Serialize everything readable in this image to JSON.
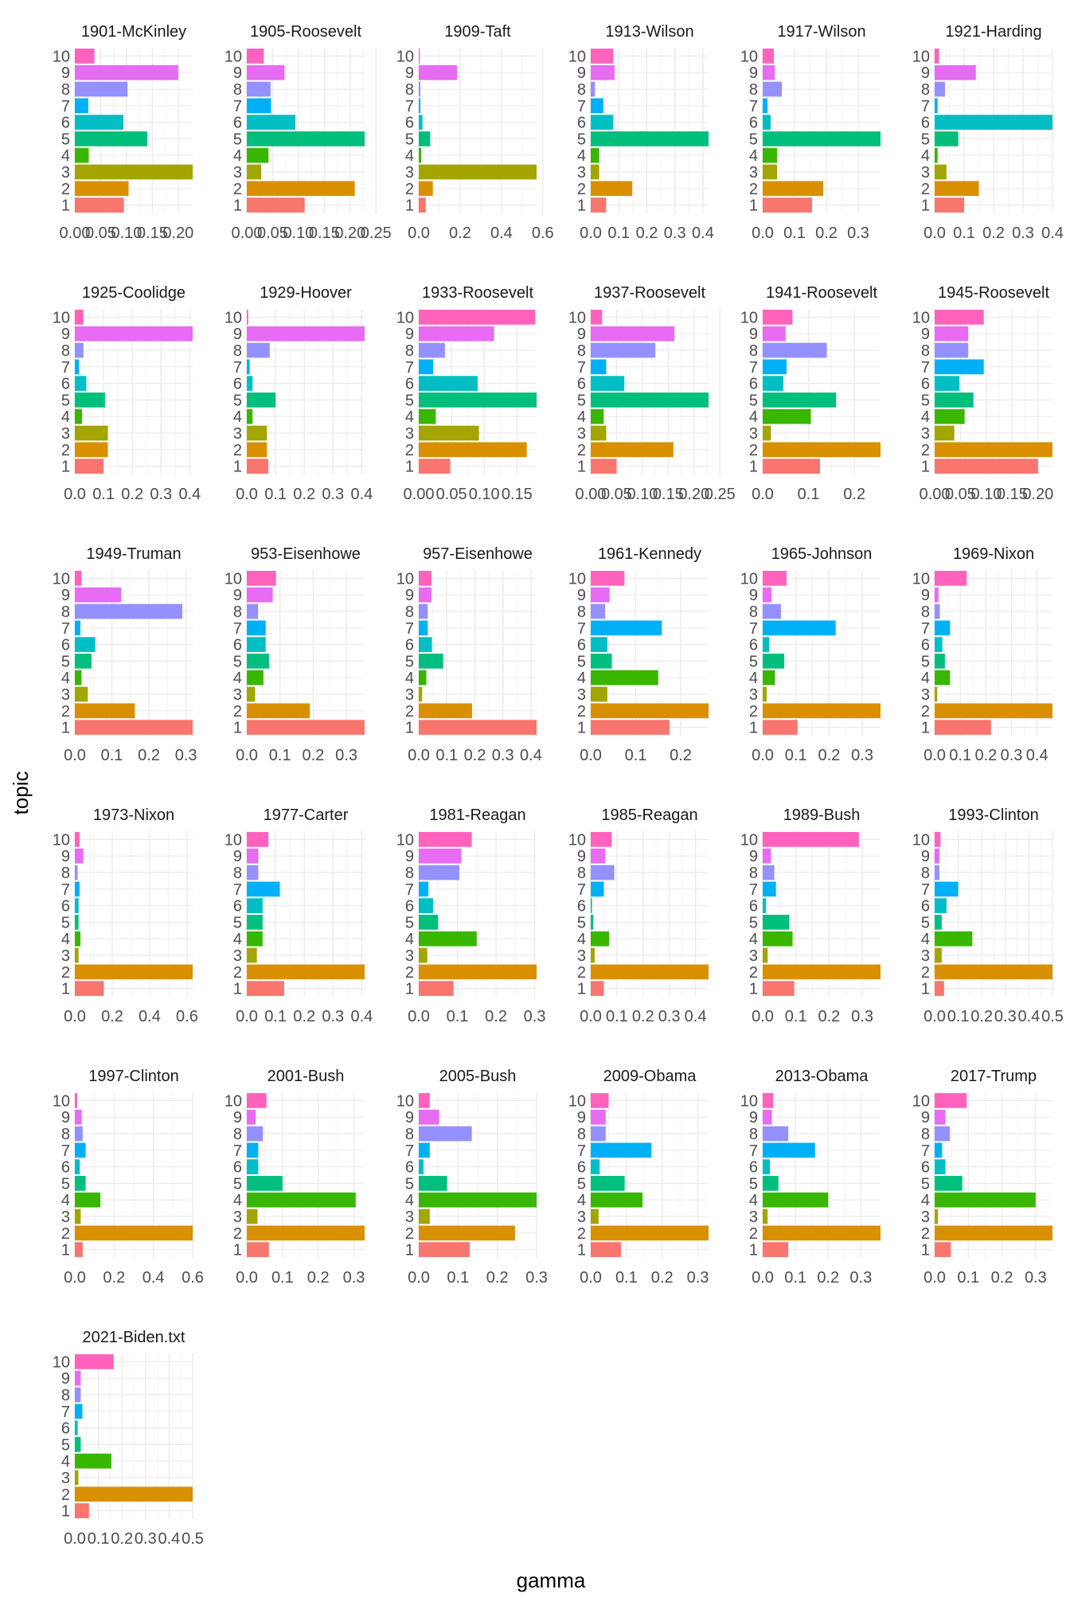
{
  "chart_data": {
    "type": "bar",
    "orientation": "horizontal",
    "facet_layout": {
      "ncol": 6,
      "nrow": 7
    },
    "xlabel": "gamma",
    "ylabel": "topic",
    "topics": [
      "1",
      "2",
      "3",
      "4",
      "5",
      "6",
      "7",
      "8",
      "9",
      "10"
    ],
    "topic_colors": [
      "#F8766D",
      "#D89000",
      "#A3A500",
      "#39B600",
      "#00BF7D",
      "#00BFC4",
      "#00B0F6",
      "#9590FF",
      "#E76BF3",
      "#FF62BC"
    ],
    "grid": true,
    "legend": "none",
    "facets": [
      {
        "title": "1901-McKinley",
        "xlim": [
          0,
          0.228
        ],
        "xticks": [
          0,
          0.05,
          0.1,
          0.15,
          0.2
        ],
        "xtick_labels": [
          "0.00",
          "0.05",
          "0.10",
          "0.15",
          "0.20"
        ],
        "values": [
          0.095,
          0.104,
          0.228,
          0.027,
          0.14,
          0.094,
          0.026,
          0.102,
          0.2,
          0.038
        ]
      },
      {
        "title": "1905-Roosevelt",
        "xlim": [
          0,
          0.228
        ],
        "xticks": [
          0,
          0.05,
          0.1,
          0.15,
          0.2,
          0.25
        ],
        "xtick_labels": [
          "0.00",
          "0.05",
          "0.10",
          "0.15",
          "0.20",
          "0.25"
        ],
        "values": [
          0.112,
          0.209,
          0.028,
          0.042,
          0.228,
          0.094,
          0.047,
          0.046,
          0.073,
          0.033
        ]
      },
      {
        "title": "1909-Taft",
        "xlim": [
          0,
          0.57
        ],
        "xticks": [
          0,
          0.2,
          0.4,
          0.6
        ],
        "xtick_labels": [
          "0.0",
          "0.2",
          "0.4",
          "0.6"
        ],
        "values": [
          0.034,
          0.068,
          0.57,
          0.012,
          0.055,
          0.018,
          0.008,
          0.008,
          0.185,
          0.005
        ]
      },
      {
        "title": "1913-Wilson",
        "xlim": [
          0,
          0.42
        ],
        "xticks": [
          0,
          0.1,
          0.2,
          0.3,
          0.4
        ],
        "xtick_labels": [
          "0.0",
          "0.1",
          "0.2",
          "0.3",
          "0.4"
        ],
        "values": [
          0.055,
          0.148,
          0.03,
          0.03,
          0.42,
          0.08,
          0.045,
          0.015,
          0.085,
          0.08
        ]
      },
      {
        "title": "1917-Wilson",
        "xlim": [
          0,
          0.37
        ],
        "xticks": [
          0,
          0.1,
          0.2,
          0.3
        ],
        "xtick_labels": [
          "0.0",
          "0.1",
          "0.2",
          "0.3"
        ],
        "values": [
          0.155,
          0.19,
          0.045,
          0.045,
          0.37,
          0.025,
          0.015,
          0.06,
          0.038,
          0.035
        ]
      },
      {
        "title": "1921-Harding",
        "xlim": [
          0,
          0.4
        ],
        "xticks": [
          0,
          0.1,
          0.2,
          0.3,
          0.4
        ],
        "xtick_labels": [
          "0.0",
          "0.1",
          "0.2",
          "0.3",
          "0.4"
        ],
        "values": [
          0.1,
          0.15,
          0.04,
          0.01,
          0.08,
          0.4,
          0.01,
          0.035,
          0.14,
          0.015
        ]
      },
      {
        "title": "1925-Coolidge",
        "xlim": [
          0,
          0.41
        ],
        "xticks": [
          0,
          0.1,
          0.2,
          0.3,
          0.4
        ],
        "xtick_labels": [
          "0.0",
          "0.1",
          "0.2",
          "0.3",
          "0.4"
        ],
        "values": [
          0.1,
          0.115,
          0.115,
          0.025,
          0.105,
          0.04,
          0.015,
          0.03,
          0.41,
          0.03
        ]
      },
      {
        "title": "1929-Hoover",
        "xlim": [
          0,
          0.41
        ],
        "xticks": [
          0,
          0.1,
          0.2,
          0.3,
          0.4
        ],
        "xtick_labels": [
          "0.0",
          "0.1",
          "0.2",
          "0.3",
          "0.4"
        ],
        "values": [
          0.075,
          0.07,
          0.07,
          0.02,
          0.1,
          0.02,
          0.01,
          0.08,
          0.41,
          0.005
        ]
      },
      {
        "title": "1933-Roosevelt",
        "xlim": [
          0,
          0.18
        ],
        "xticks": [
          0,
          0.05,
          0.1,
          0.15
        ],
        "xtick_labels": [
          "0.00",
          "0.05",
          "0.10",
          "0.15"
        ],
        "values": [
          0.048,
          0.165,
          0.092,
          0.026,
          0.18,
          0.09,
          0.022,
          0.04,
          0.115,
          0.178
        ]
      },
      {
        "title": "1937-Roosevelt",
        "xlim": [
          0,
          0.228
        ],
        "xticks": [
          0,
          0.05,
          0.1,
          0.15,
          0.2,
          0.25
        ],
        "xtick_labels": [
          "0.00",
          "0.05",
          "0.10",
          "0.15",
          "0.20",
          "0.25"
        ],
        "values": [
          0.05,
          0.16,
          0.03,
          0.025,
          0.228,
          0.065,
          0.03,
          0.125,
          0.162,
          0.022
        ]
      },
      {
        "title": "1941-Roosevelt",
        "xlim": [
          0,
          0.257
        ],
        "xticks": [
          0,
          0.1,
          0.2
        ],
        "xtick_labels": [
          "0.0",
          "0.1",
          "0.2"
        ],
        "values": [
          0.125,
          0.257,
          0.018,
          0.105,
          0.16,
          0.045,
          0.052,
          0.14,
          0.05,
          0.065
        ]
      },
      {
        "title": "1945-Roosevelt",
        "xlim": [
          0,
          0.228
        ],
        "xticks": [
          0,
          0.05,
          0.1,
          0.15,
          0.2
        ],
        "xtick_labels": [
          "0.00",
          "0.05",
          "0.10",
          "0.15",
          "0.20"
        ],
        "values": [
          0.2,
          0.228,
          0.038,
          0.058,
          0.075,
          0.048,
          0.095,
          0.065,
          0.065,
          0.095
        ]
      },
      {
        "title": "1949-Truman",
        "xlim": [
          0,
          0.318
        ],
        "xticks": [
          0,
          0.1,
          0.2,
          0.3
        ],
        "xtick_labels": [
          "0.0",
          "0.1",
          "0.2",
          "0.3"
        ],
        "values": [
          0.318,
          0.162,
          0.035,
          0.018,
          0.045,
          0.055,
          0.015,
          0.29,
          0.125,
          0.018
        ]
      },
      {
        "title": "953-Eisenhowe",
        "xlim": [
          0,
          0.355
        ],
        "xticks": [
          0,
          0.1,
          0.2,
          0.3
        ],
        "xtick_labels": [
          "0.0",
          "0.1",
          "0.2",
          "0.3"
        ],
        "values": [
          0.355,
          0.19,
          0.025,
          0.05,
          0.067,
          0.057,
          0.057,
          0.034,
          0.078,
          0.088
        ]
      },
      {
        "title": "957-Eisenhowe",
        "xlim": [
          0,
          0.42
        ],
        "xticks": [
          0,
          0.1,
          0.2,
          0.3,
          0.4
        ],
        "xtick_labels": [
          "0.0",
          "0.1",
          "0.2",
          "0.3",
          "0.4"
        ],
        "values": [
          0.42,
          0.19,
          0.012,
          0.027,
          0.087,
          0.047,
          0.032,
          0.032,
          0.045,
          0.045
        ]
      },
      {
        "title": "1961-Kennedy",
        "xlim": [
          0,
          0.262
        ],
        "xticks": [
          0,
          0.1,
          0.2
        ],
        "xtick_labels": [
          "0.0",
          "0.1",
          "0.2"
        ],
        "values": [
          0.175,
          0.262,
          0.037,
          0.15,
          0.047,
          0.037,
          0.158,
          0.032,
          0.042,
          0.075
        ]
      },
      {
        "title": "1965-Johnson",
        "xlim": [
          0,
          0.355
        ],
        "xticks": [
          0,
          0.1,
          0.2,
          0.3
        ],
        "xtick_labels": [
          "0.0",
          "0.1",
          "0.2",
          "0.3"
        ],
        "values": [
          0.105,
          0.355,
          0.012,
          0.037,
          0.065,
          0.02,
          0.22,
          0.055,
          0.027,
          0.072
        ]
      },
      {
        "title": "1969-Nixon",
        "xlim": [
          0,
          0.46
        ],
        "xticks": [
          0,
          0.1,
          0.2,
          0.3,
          0.4
        ],
        "xtick_labels": [
          "0.0",
          "0.1",
          "0.2",
          "0.3",
          "0.4"
        ],
        "values": [
          0.22,
          0.46,
          0.01,
          0.06,
          0.04,
          0.03,
          0.06,
          0.02,
          0.015,
          0.125
        ]
      },
      {
        "title": "1973-Nixon",
        "xlim": [
          0,
          0.63
        ],
        "xticks": [
          0,
          0.2,
          0.4,
          0.6
        ],
        "xtick_labels": [
          "0.0",
          "0.2",
          "0.4",
          "0.6"
        ],
        "values": [
          0.155,
          0.63,
          0.02,
          0.03,
          0.02,
          0.02,
          0.025,
          0.015,
          0.045,
          0.025
        ]
      },
      {
        "title": "1977-Carter",
        "xlim": [
          0,
          0.41
        ],
        "xticks": [
          0,
          0.1,
          0.2,
          0.3,
          0.4
        ],
        "xtick_labels": [
          "0.0",
          "0.1",
          "0.2",
          "0.3",
          "0.4"
        ],
        "values": [
          0.13,
          0.41,
          0.035,
          0.055,
          0.055,
          0.055,
          0.115,
          0.04,
          0.04,
          0.075
        ]
      },
      {
        "title": "1981-Reagan",
        "xlim": [
          0,
          0.305
        ],
        "xticks": [
          0,
          0.1,
          0.2,
          0.3
        ],
        "xtick_labels": [
          "0.0",
          "0.1",
          "0.2",
          "0.3"
        ],
        "values": [
          0.09,
          0.305,
          0.022,
          0.15,
          0.05,
          0.037,
          0.025,
          0.105,
          0.11,
          0.137
        ]
      },
      {
        "title": "1985-Reagan",
        "xlim": [
          0,
          0.45
        ],
        "xticks": [
          0,
          0.1,
          0.2,
          0.3,
          0.4
        ],
        "xtick_labels": [
          "0.0",
          "0.1",
          "0.2",
          "0.3",
          "0.4"
        ],
        "values": [
          0.05,
          0.45,
          0.015,
          0.07,
          0.01,
          0.005,
          0.05,
          0.09,
          0.055,
          0.08
        ]
      },
      {
        "title": "1989-Bush",
        "xlim": [
          0,
          0.355
        ],
        "xticks": [
          0,
          0.1,
          0.2,
          0.3
        ],
        "xtick_labels": [
          "0.0",
          "0.1",
          "0.2",
          "0.3"
        ],
        "values": [
          0.095,
          0.355,
          0.015,
          0.09,
          0.08,
          0.01,
          0.04,
          0.035,
          0.025,
          0.29
        ]
      },
      {
        "title": "1993-Clinton",
        "xlim": [
          0,
          0.5
        ],
        "xticks": [
          0,
          0.1,
          0.2,
          0.3,
          0.4,
          0.5
        ],
        "xtick_labels": [
          "0.0",
          "0.1",
          "0.2",
          "0.3",
          "0.4",
          "0.5"
        ],
        "values": [
          0.04,
          0.5,
          0.03,
          0.16,
          0.03,
          0.05,
          0.1,
          0.02,
          0.02,
          0.025
        ]
      },
      {
        "title": "1997-Clinton",
        "xlim": [
          0,
          0.6
        ],
        "xticks": [
          0,
          0.2,
          0.4,
          0.6
        ],
        "xtick_labels": [
          "0.0",
          "0.2",
          "0.4",
          "0.6"
        ],
        "values": [
          0.04,
          0.6,
          0.03,
          0.13,
          0.055,
          0.025,
          0.055,
          0.04,
          0.035,
          0.012
        ]
      },
      {
        "title": "2001-Bush",
        "xlim": [
          0,
          0.33
        ],
        "xticks": [
          0,
          0.1,
          0.2,
          0.3
        ],
        "xtick_labels": [
          "0.0",
          "0.1",
          "0.2",
          "0.3"
        ],
        "values": [
          0.062,
          0.33,
          0.03,
          0.305,
          0.1,
          0.032,
          0.032,
          0.045,
          0.025,
          0.055
        ]
      },
      {
        "title": "2005-Bush",
        "xlim": [
          0,
          0.3
        ],
        "xticks": [
          0,
          0.1,
          0.2,
          0.3
        ],
        "xtick_labels": [
          "0.0",
          "0.1",
          "0.2",
          "0.3"
        ],
        "values": [
          0.13,
          0.245,
          0.028,
          0.3,
          0.072,
          0.012,
          0.028,
          0.135,
          0.052,
          0.028
        ]
      },
      {
        "title": "2009-Obama",
        "xlim": [
          0,
          0.33
        ],
        "xticks": [
          0,
          0.1,
          0.2,
          0.3
        ],
        "xtick_labels": [
          "0.0",
          "0.1",
          "0.2",
          "0.3"
        ],
        "values": [
          0.085,
          0.33,
          0.022,
          0.145,
          0.095,
          0.025,
          0.17,
          0.042,
          0.042,
          0.05
        ]
      },
      {
        "title": "2013-Obama",
        "xlim": [
          0,
          0.36
        ],
        "xticks": [
          0,
          0.1,
          0.2,
          0.3
        ],
        "xtick_labels": [
          "0.0",
          "0.1",
          "0.2",
          "0.3"
        ],
        "values": [
          0.078,
          0.36,
          0.015,
          0.2,
          0.048,
          0.022,
          0.16,
          0.078,
          0.028,
          0.032
        ]
      },
      {
        "title": "2017-Trump",
        "xlim": [
          0,
          0.35
        ],
        "xticks": [
          0,
          0.1,
          0.2,
          0.3
        ],
        "xtick_labels": [
          "0.0",
          "0.1",
          "0.2",
          "0.3"
        ],
        "values": [
          0.048,
          0.35,
          0.01,
          0.3,
          0.082,
          0.032,
          0.022,
          0.045,
          0.032,
          0.095
        ]
      },
      {
        "title": "2021-Biden.txt",
        "xlim": [
          0,
          0.5
        ],
        "xticks": [
          0,
          0.1,
          0.2,
          0.3,
          0.4,
          0.5
        ],
        "xtick_labels": [
          "0.0",
          "0.1",
          "0.2",
          "0.3",
          "0.4",
          "0.5"
        ],
        "values": [
          0.06,
          0.5,
          0.015,
          0.155,
          0.025,
          0.012,
          0.032,
          0.025,
          0.025,
          0.165
        ]
      }
    ]
  }
}
